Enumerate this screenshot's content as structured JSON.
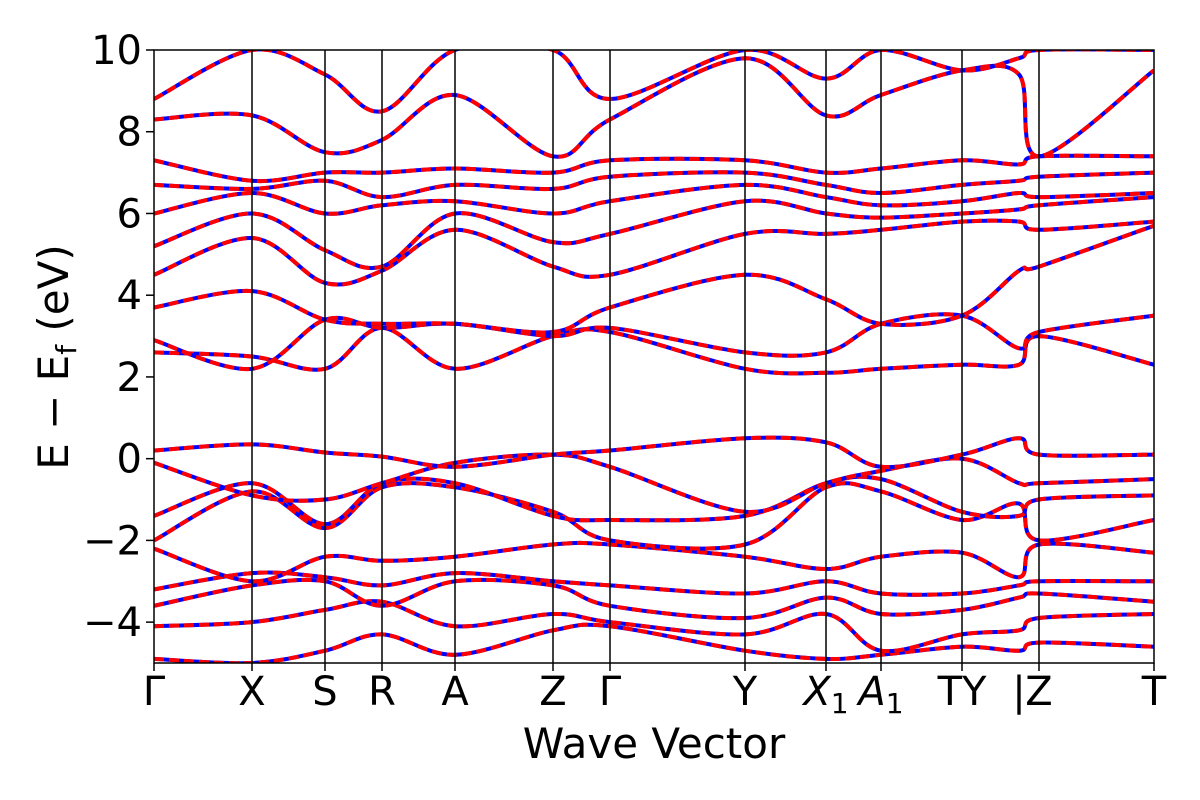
{
  "chart_data": {
    "type": "line",
    "title": "",
    "xlabel": "Wave Vector",
    "ylabel_parts": {
      "main": "E − E",
      "sub": "f",
      "unit": " (eV)"
    },
    "ylim": [
      -5,
      10
    ],
    "xlim": [
      0,
      10
    ],
    "y_ticks": [
      10,
      8,
      6,
      4,
      2,
      0,
      -2,
      -4
    ],
    "y_tick_labels": [
      "10",
      "8",
      "6",
      "4",
      "2",
      "0",
      "−2",
      "−4"
    ],
    "kpoints": [
      {
        "x": 0.0,
        "label": "Γ",
        "sub": ""
      },
      {
        "x": 0.98,
        "label": "X",
        "sub": ""
      },
      {
        "x": 1.71,
        "label": "S",
        "sub": ""
      },
      {
        "x": 2.28,
        "label": "R",
        "sub": ""
      },
      {
        "x": 3.01,
        "label": "A",
        "sub": ""
      },
      {
        "x": 3.99,
        "label": "Z",
        "sub": ""
      },
      {
        "x": 4.56,
        "label": "Γ",
        "sub": ""
      },
      {
        "x": 5.91,
        "label": "Y",
        "sub": ""
      },
      {
        "x": 6.72,
        "label": "X",
        "sub": "1"
      },
      {
        "x": 7.27,
        "label": "A",
        "sub": "1"
      },
      {
        "x": 8.08,
        "label": "TY",
        "sub": ""
      },
      {
        "x": 8.65,
        "label": "|",
        "sub": ""
      },
      {
        "x": 8.85,
        "label": "Z",
        "sub": ""
      },
      {
        "x": 10.0,
        "label": "T",
        "sub": ""
      }
    ],
    "series_styles": [
      {
        "color": "#ff0000",
        "style": "solid"
      },
      {
        "color": "#0000ff",
        "style": "dashed"
      }
    ],
    "bands": [
      {
        "x": [
          0,
          0.98,
          1.71,
          2.28,
          3.01,
          3.99,
          4.56,
          5.91,
          6.72,
          7.27,
          8.08,
          8.65,
          8.85,
          10.0
        ],
        "y": [
          -4.9,
          -5.0,
          -4.7,
          -4.3,
          -4.8,
          -4.2,
          -4.1,
          -4.7,
          -4.9,
          -4.8,
          -4.6,
          -4.7,
          -4.5,
          -4.6
        ]
      },
      {
        "x": [
          0,
          0.98,
          1.71,
          2.28,
          3.01,
          3.99,
          4.56,
          5.91,
          6.72,
          7.27,
          8.08,
          8.65,
          8.85,
          10.0
        ],
        "y": [
          -4.1,
          -4.0,
          -3.7,
          -3.5,
          -4.1,
          -3.8,
          -4.0,
          -4.3,
          -3.8,
          -4.7,
          -4.3,
          -4.2,
          -3.9,
          -3.8
        ]
      },
      {
        "x": [
          0,
          0.98,
          1.71,
          2.28,
          3.01,
          3.99,
          4.56,
          5.91,
          6.72,
          7.27,
          8.08,
          8.65,
          8.85,
          10.0
        ],
        "y": [
          -3.6,
          -3.1,
          -3.0,
          -3.6,
          -3.0,
          -3.1,
          -3.6,
          -3.9,
          -3.4,
          -3.8,
          -3.7,
          -3.4,
          -3.3,
          -3.5
        ]
      },
      {
        "x": [
          0,
          0.98,
          1.71,
          2.28,
          3.01,
          3.99,
          4.56,
          5.91,
          6.72,
          7.27,
          8.08,
          8.65,
          8.85,
          10.0
        ],
        "y": [
          -3.2,
          -2.8,
          -2.9,
          -3.1,
          -2.8,
          -3.0,
          -3.1,
          -3.3,
          -3.0,
          -3.3,
          -3.3,
          -3.1,
          -3.0,
          -3.0
        ]
      },
      {
        "x": [
          0,
          0.98,
          1.71,
          2.28,
          3.01,
          3.99,
          4.56,
          5.91,
          6.72,
          7.27,
          8.08,
          8.65,
          8.85,
          10.0
        ],
        "y": [
          -2.2,
          -3.0,
          -2.4,
          -2.5,
          -2.4,
          -2.1,
          -2.1,
          -2.4,
          -2.7,
          -2.4,
          -2.3,
          -2.9,
          -2.1,
          -2.3
        ]
      },
      {
        "x": [
          0,
          0.98,
          1.71,
          2.28,
          3.01,
          3.99,
          4.56,
          5.91,
          6.72,
          7.27,
          8.08,
          8.65,
          8.85,
          10.0
        ],
        "y": [
          -2.0,
          -0.8,
          -1.7,
          -0.7,
          -0.7,
          -1.3,
          -2.0,
          -2.1,
          -0.7,
          -0.8,
          -1.5,
          -1.1,
          -2.0,
          -1.5
        ]
      },
      {
        "x": [
          0,
          0.98,
          1.71,
          2.28,
          3.01,
          3.99,
          4.56,
          5.91,
          6.72,
          7.27,
          8.08,
          8.65,
          8.85,
          10.0
        ],
        "y": [
          -1.4,
          -0.6,
          -1.6,
          -0.6,
          -0.6,
          -1.4,
          -1.5,
          -1.4,
          -0.6,
          -0.5,
          -1.3,
          -1.4,
          -1.0,
          -0.9
        ]
      },
      {
        "x": [
          0,
          0.98,
          1.71,
          2.28,
          3.01,
          3.99,
          4.56,
          5.91,
          6.72,
          7.27,
          8.08,
          8.65,
          8.85,
          10.0
        ],
        "y": [
          -0.1,
          -0.9,
          -1.0,
          -0.6,
          -0.1,
          0.1,
          -0.2,
          -1.3,
          -0.6,
          -0.3,
          0.0,
          -0.6,
          -0.6,
          -0.5
        ]
      },
      {
        "x": [
          0,
          0.98,
          1.71,
          2.28,
          3.01,
          3.99,
          4.56,
          5.91,
          6.72,
          7.27,
          8.08,
          8.65,
          8.85,
          10.0
        ],
        "y": [
          0.2,
          0.35,
          0.15,
          0.05,
          -0.2,
          0.1,
          0.2,
          0.5,
          0.4,
          -0.2,
          0.1,
          0.5,
          0.1,
          0.1
        ]
      },
      {
        "x": [
          0,
          0.98,
          1.71,
          2.28,
          3.01,
          3.99,
          4.56,
          5.91,
          6.72,
          7.27,
          8.08,
          8.65,
          8.85,
          10.0
        ],
        "y": [
          2.6,
          2.5,
          2.2,
          3.2,
          2.2,
          3.0,
          3.1,
          2.2,
          2.1,
          2.2,
          2.3,
          2.3,
          3.0,
          2.3
        ]
      },
      {
        "x": [
          0,
          0.98,
          1.71,
          2.28,
          3.01,
          3.99,
          4.56,
          5.91,
          6.72,
          7.27,
          8.08,
          8.65,
          8.85,
          10.0
        ],
        "y": [
          2.9,
          2.2,
          3.4,
          3.2,
          3.3,
          3.0,
          3.2,
          2.6,
          2.6,
          3.3,
          3.5,
          2.7,
          3.1,
          3.5
        ]
      },
      {
        "x": [
          0,
          0.98,
          1.71,
          2.28,
          3.01,
          3.99,
          4.56,
          5.91,
          6.72,
          7.27,
          8.08,
          8.65,
          8.85,
          10.0
        ],
        "y": [
          3.7,
          4.1,
          3.4,
          3.3,
          3.3,
          3.1,
          3.7,
          4.5,
          3.9,
          3.3,
          3.5,
          4.6,
          4.7,
          5.7
        ]
      },
      {
        "x": [
          0,
          0.98,
          1.71,
          2.28,
          3.01,
          3.99,
          4.56,
          5.91,
          6.72,
          7.27,
          8.08,
          8.65,
          8.85,
          10.0
        ],
        "y": [
          4.5,
          5.4,
          4.3,
          4.6,
          5.6,
          4.7,
          4.5,
          5.5,
          5.5,
          5.6,
          5.8,
          5.8,
          5.6,
          5.8
        ]
      },
      {
        "x": [
          0,
          0.98,
          1.71,
          2.28,
          3.01,
          3.99,
          4.56,
          5.91,
          6.72,
          7.27,
          8.08,
          8.65,
          8.85,
          10.0
        ],
        "y": [
          5.2,
          6.0,
          5.1,
          4.7,
          6.0,
          5.3,
          5.5,
          6.3,
          6.0,
          5.9,
          6.0,
          6.1,
          6.2,
          6.4
        ]
      },
      {
        "x": [
          0,
          0.98,
          1.71,
          2.28,
          3.01,
          3.99,
          4.56,
          5.91,
          6.72,
          7.27,
          8.08,
          8.65,
          8.85,
          10.0
        ],
        "y": [
          6.0,
          6.5,
          6.0,
          6.2,
          6.3,
          6.0,
          6.3,
          6.7,
          6.4,
          6.2,
          6.3,
          6.5,
          6.4,
          6.5
        ]
      },
      {
        "x": [
          0,
          0.98,
          1.71,
          2.28,
          3.01,
          3.99,
          4.56,
          5.91,
          6.72,
          7.27,
          8.08,
          8.65,
          8.85,
          10.0
        ],
        "y": [
          6.7,
          6.6,
          6.8,
          6.4,
          6.7,
          6.6,
          6.9,
          7.0,
          6.7,
          6.5,
          6.7,
          6.8,
          6.9,
          7.0
        ]
      },
      {
        "x": [
          0,
          0.98,
          1.71,
          2.28,
          3.01,
          3.99,
          4.56,
          5.91,
          6.72,
          7.27,
          8.08,
          8.65,
          8.85,
          10.0
        ],
        "y": [
          7.3,
          6.8,
          7.0,
          7.0,
          7.1,
          7.0,
          7.3,
          7.3,
          7.0,
          7.1,
          7.3,
          7.2,
          7.4,
          7.4
        ]
      },
      {
        "x": [
          0,
          0.98,
          1.71,
          2.28,
          3.01,
          3.99,
          4.56,
          5.91,
          6.72,
          7.27,
          8.08,
          8.65,
          8.85,
          10.0
        ],
        "y": [
          8.3,
          8.4,
          7.5,
          7.8,
          8.9,
          7.4,
          8.3,
          9.8,
          8.4,
          8.9,
          9.5,
          9.4,
          7.4,
          9.5
        ]
      },
      {
        "x": [
          0,
          0.98,
          1.71,
          2.28,
          3.01,
          3.99,
          4.56,
          5.91,
          6.72,
          7.27,
          8.08,
          8.65,
          8.85,
          10.0
        ],
        "y": [
          8.8,
          10.0,
          9.4,
          8.5,
          10.0,
          10.0,
          8.8,
          10.0,
          9.3,
          10.0,
          9.5,
          9.8,
          10.0,
          10.0
        ]
      }
    ]
  }
}
